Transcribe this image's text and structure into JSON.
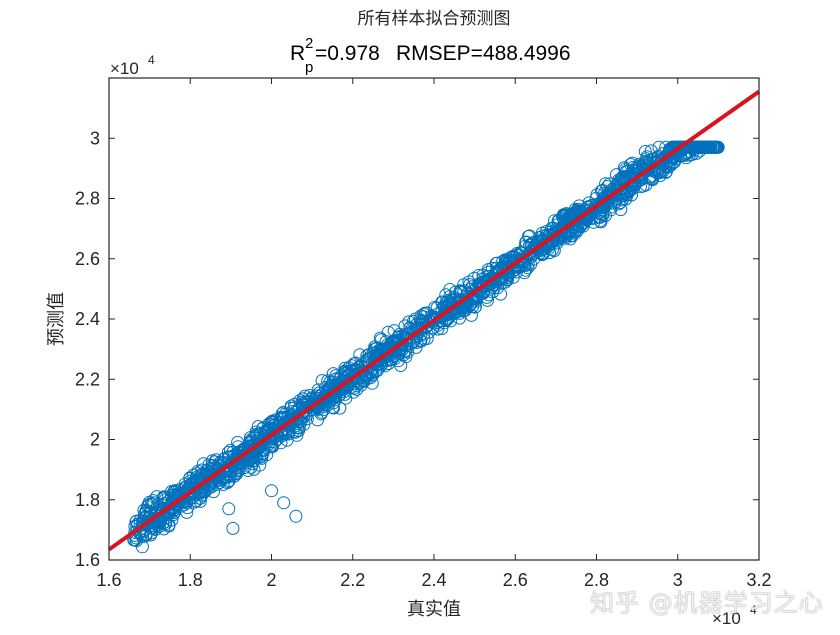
{
  "chart_data": {
    "type": "scatter",
    "title": "所有样本拟合预测图",
    "subtitle": {
      "r2_label_base": "R",
      "r2_label_sup": "2",
      "r2_label_sub": "p",
      "r2_value_text": "=0.978",
      "rmsep_text": "RMSEP=488.4996",
      "r2": 0.978,
      "rmsep": 488.4996
    },
    "xlabel": "真实值",
    "ylabel": "预测值",
    "xlim": [
      1.6,
      3.2
    ],
    "ylim": [
      1.6,
      3.2
    ],
    "x_scale_label": "×10",
    "x_scale_exp": "4",
    "y_scale_label": "×10",
    "y_scale_exp": "4",
    "multiplier": 10000,
    "xticks": [
      1.6,
      1.8,
      2.0,
      2.2,
      2.4,
      2.6,
      2.8,
      3.0,
      3.2
    ],
    "xtick_labels": [
      "1.6",
      "1.8",
      "2",
      "2.2",
      "2.4",
      "2.6",
      "2.8",
      "3",
      "3.2"
    ],
    "yticks": [
      1.6,
      1.8,
      2.0,
      2.2,
      2.4,
      2.6,
      2.8,
      3.0
    ],
    "ytick_labels": [
      "1.6",
      "1.8",
      "2",
      "2.2",
      "2.4",
      "2.6",
      "2.8",
      "3"
    ],
    "grid": false,
    "legend": null,
    "series": [
      {
        "name": "samples",
        "marker": "open-circle",
        "color": "#0072BD",
        "x_range": [
          1.66,
          3.1
        ],
        "approx_points": 3000,
        "spread_y": 0.06,
        "outliers": [
          {
            "x": 1.905,
            "y": 1.705
          },
          {
            "x": 1.895,
            "y": 1.77
          },
          {
            "x": 2.0,
            "y": 1.83
          },
          {
            "x": 2.03,
            "y": 1.79
          },
          {
            "x": 2.06,
            "y": 1.745
          }
        ]
      },
      {
        "name": "fit-line",
        "type": "line",
        "color": "#D9141E",
        "x": [
          1.6,
          3.2
        ],
        "y": [
          1.635,
          3.155
        ]
      }
    ]
  },
  "watermark": "知乎 @机器学习之心"
}
